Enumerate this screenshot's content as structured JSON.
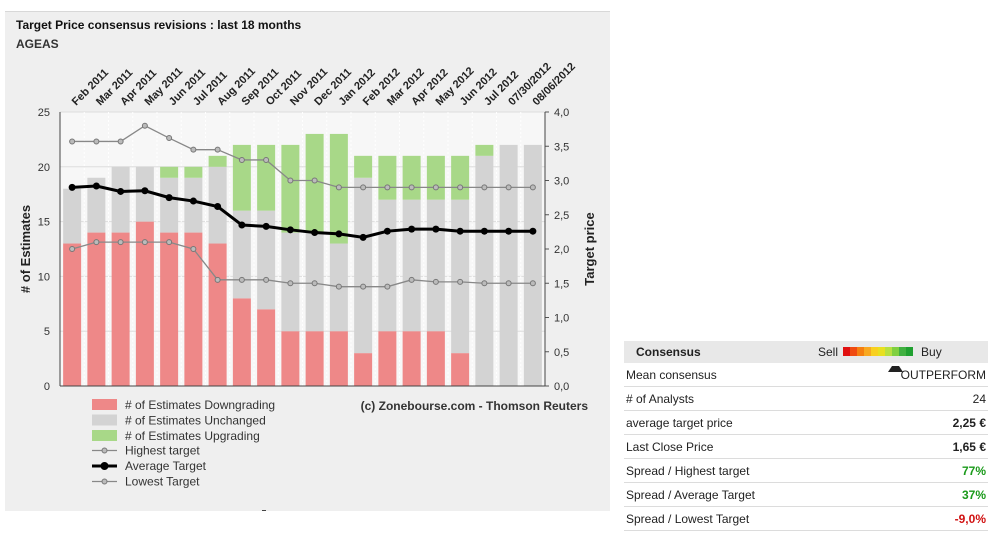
{
  "chart_data": {
    "type": "bar",
    "title": "Target Price consensus revisions : last 18 months",
    "subtitle": "AGEAS",
    "categories": [
      "Feb 2011",
      "Mar 2011",
      "Apr 2011",
      "May 2011",
      "Jun 2011",
      "Jul 2011",
      "Aug 2011",
      "Sep 2011",
      "Oct 2011",
      "Nov 2011",
      "Dec 2011",
      "Jan 2012",
      "Feb 2012",
      "Mar 2012",
      "Apr 2012",
      "May 2012",
      "Jun 2012",
      "Jul 2012",
      "07/30/2012",
      "08/06/2012"
    ],
    "ylabel": "# of Estimates",
    "y2label": "Target price",
    "ylim": [
      0,
      25
    ],
    "y2lim": [
      0,
      4
    ],
    "yticks": [
      "0",
      "5",
      "10",
      "15",
      "20",
      "25"
    ],
    "y2ticks": [
      "0,0",
      "0,5",
      "1,0",
      "1,5",
      "2,0",
      "2,5",
      "3,0",
      "3,5",
      "4,0"
    ],
    "bar_series": [
      {
        "name": "# of Estimates Downgrading",
        "color": "#ee8888",
        "values": [
          13,
          14,
          14,
          15,
          14,
          14,
          13,
          8,
          7,
          5,
          5,
          5,
          3,
          5,
          5,
          5,
          3,
          0,
          0,
          0
        ]
      },
      {
        "name": "# of Estimates Unchanged",
        "color": "#d3d3d3",
        "values": [
          5,
          5,
          6,
          5,
          5,
          5,
          7,
          8,
          9,
          9,
          9,
          8,
          16,
          12,
          12,
          12,
          14,
          21,
          22,
          22
        ]
      },
      {
        "name": "# of Estimates Upgrading",
        "color": "#a8d888",
        "values": [
          0,
          0,
          0,
          0,
          1,
          1,
          1,
          6,
          6,
          8,
          9,
          10,
          2,
          4,
          4,
          4,
          4,
          1,
          0,
          0
        ]
      }
    ],
    "line_series": [
      {
        "name": "Highest target",
        "color": "#888888",
        "values": [
          3.57,
          3.57,
          3.57,
          3.8,
          3.62,
          3.45,
          3.45,
          3.3,
          3.3,
          3.0,
          3.0,
          2.9,
          2.9,
          2.9,
          2.9,
          2.9,
          2.9,
          2.9,
          2.9,
          2.9
        ]
      },
      {
        "name": "Average Target",
        "color": "#000000",
        "values": [
          2.9,
          2.92,
          2.84,
          2.85,
          2.75,
          2.7,
          2.62,
          2.35,
          2.33,
          2.28,
          2.24,
          2.22,
          2.17,
          2.26,
          2.29,
          2.29,
          2.26,
          2.26,
          2.26,
          2.26
        ]
      },
      {
        "name": "Lowest Target",
        "color": "#888888",
        "values": [
          2.0,
          2.1,
          2.1,
          2.1,
          2.1,
          2.0,
          1.55,
          1.55,
          1.55,
          1.5,
          1.5,
          1.45,
          1.45,
          1.45,
          1.55,
          1.52,
          1.52,
          1.5,
          1.5,
          1.5
        ]
      }
    ],
    "legend_position": "bottom-left",
    "annotation": "(c) Zonebourse.com - Thomson Reuters"
  },
  "consensus": {
    "title": "Consensus",
    "sell_label": "Sell",
    "buy_label": "Buy",
    "scale_colors": [
      "#e01010",
      "#f04a10",
      "#f57f10",
      "#f8a820",
      "#f8d020",
      "#e8e020",
      "#b8e040",
      "#80d040",
      "#40b040",
      "#20a030"
    ],
    "rating_fraction": 0.62,
    "rows": [
      {
        "label": "Mean consensus",
        "value": "OUTPERFORM",
        "style": ""
      },
      {
        "label": "# of Analysts",
        "value": "24",
        "style": ""
      },
      {
        "label": "average target price",
        "value": "2,25 €",
        "style": "bold"
      },
      {
        "label": "Last Close Price",
        "value": "1,65 €",
        "style": "bold"
      },
      {
        "label": "Spread / Highest target",
        "value": "77%",
        "style": "pos"
      },
      {
        "label": "Spread / Average Target",
        "value": "37%",
        "style": "pos"
      },
      {
        "label": "Spread / Lowest Target",
        "value": "-9,0%",
        "style": "neg"
      }
    ]
  }
}
